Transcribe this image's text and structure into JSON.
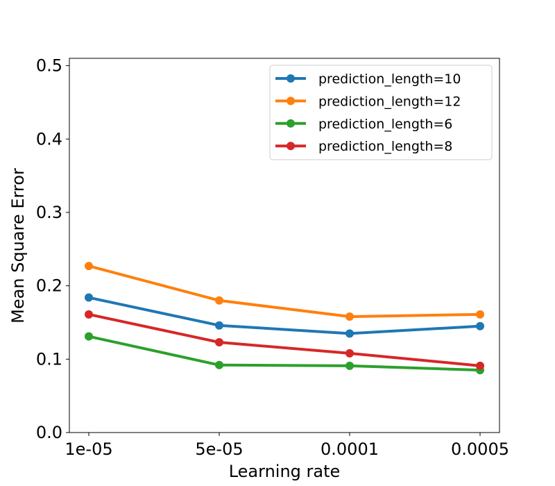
{
  "chart_data": {
    "type": "line",
    "title": "",
    "xlabel": "Learning rate",
    "ylabel": "Mean Square Error",
    "categories": [
      "1e-05",
      "5e-05",
      "0.0001",
      "0.0005"
    ],
    "ylim": [
      0.0,
      0.51
    ],
    "yticks": [
      "0.0",
      "0.1",
      "0.2",
      "0.3",
      "0.4",
      "0.5"
    ],
    "ytick_values": [
      0.0,
      0.1,
      0.2,
      0.3,
      0.4,
      0.5
    ],
    "grid": false,
    "legend_position": "top-right",
    "series": [
      {
        "name": "prediction_length=10",
        "color": "#1f77b4",
        "values": [
          0.184,
          0.146,
          0.135,
          0.145
        ]
      },
      {
        "name": "prediction_length=12",
        "color": "#ff7f0e",
        "values": [
          0.227,
          0.18,
          0.158,
          0.161
        ]
      },
      {
        "name": "prediction_length=6",
        "color": "#2ca02c",
        "values": [
          0.131,
          0.092,
          0.091,
          0.085
        ]
      },
      {
        "name": "prediction_length=8",
        "color": "#d62728",
        "values": [
          0.161,
          0.123,
          0.108,
          0.091
        ]
      }
    ]
  }
}
